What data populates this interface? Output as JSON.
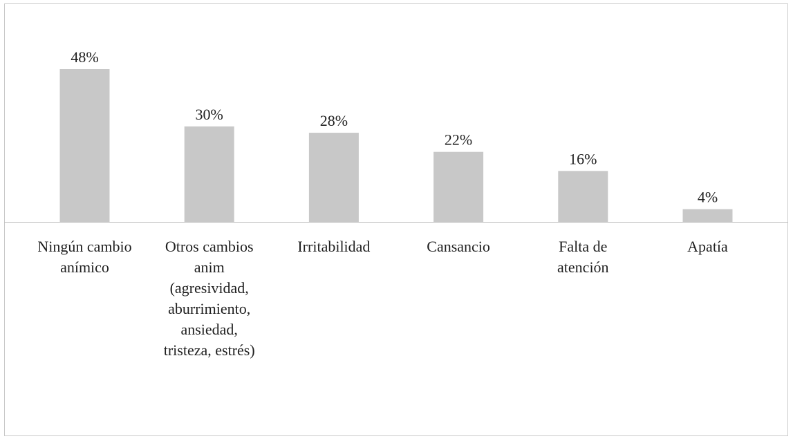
{
  "chart_data": {
    "type": "bar",
    "categories": [
      [
        "Ningún cambio",
        "anímico"
      ],
      [
        "Otros cambios",
        "anim",
        "(agresividad,",
        "aburrimiento,",
        "ansiedad,",
        "tristeza, estrés)"
      ],
      [
        "Irritabilidad"
      ],
      [
        "Cansancio"
      ],
      [
        "Falta de",
        "atención"
      ],
      [
        "Apatía"
      ]
    ],
    "values": [
      48,
      30,
      28,
      22,
      16,
      4
    ],
    "value_labels": [
      "48%",
      "30%",
      "28%",
      "22%",
      "16%",
      "4%"
    ],
    "unit": "%",
    "ylim": [
      0,
      48
    ],
    "grid": false,
    "legend": "none",
    "bar_color": "#c8c8c8",
    "axis_color": "#bfbfbf"
  }
}
